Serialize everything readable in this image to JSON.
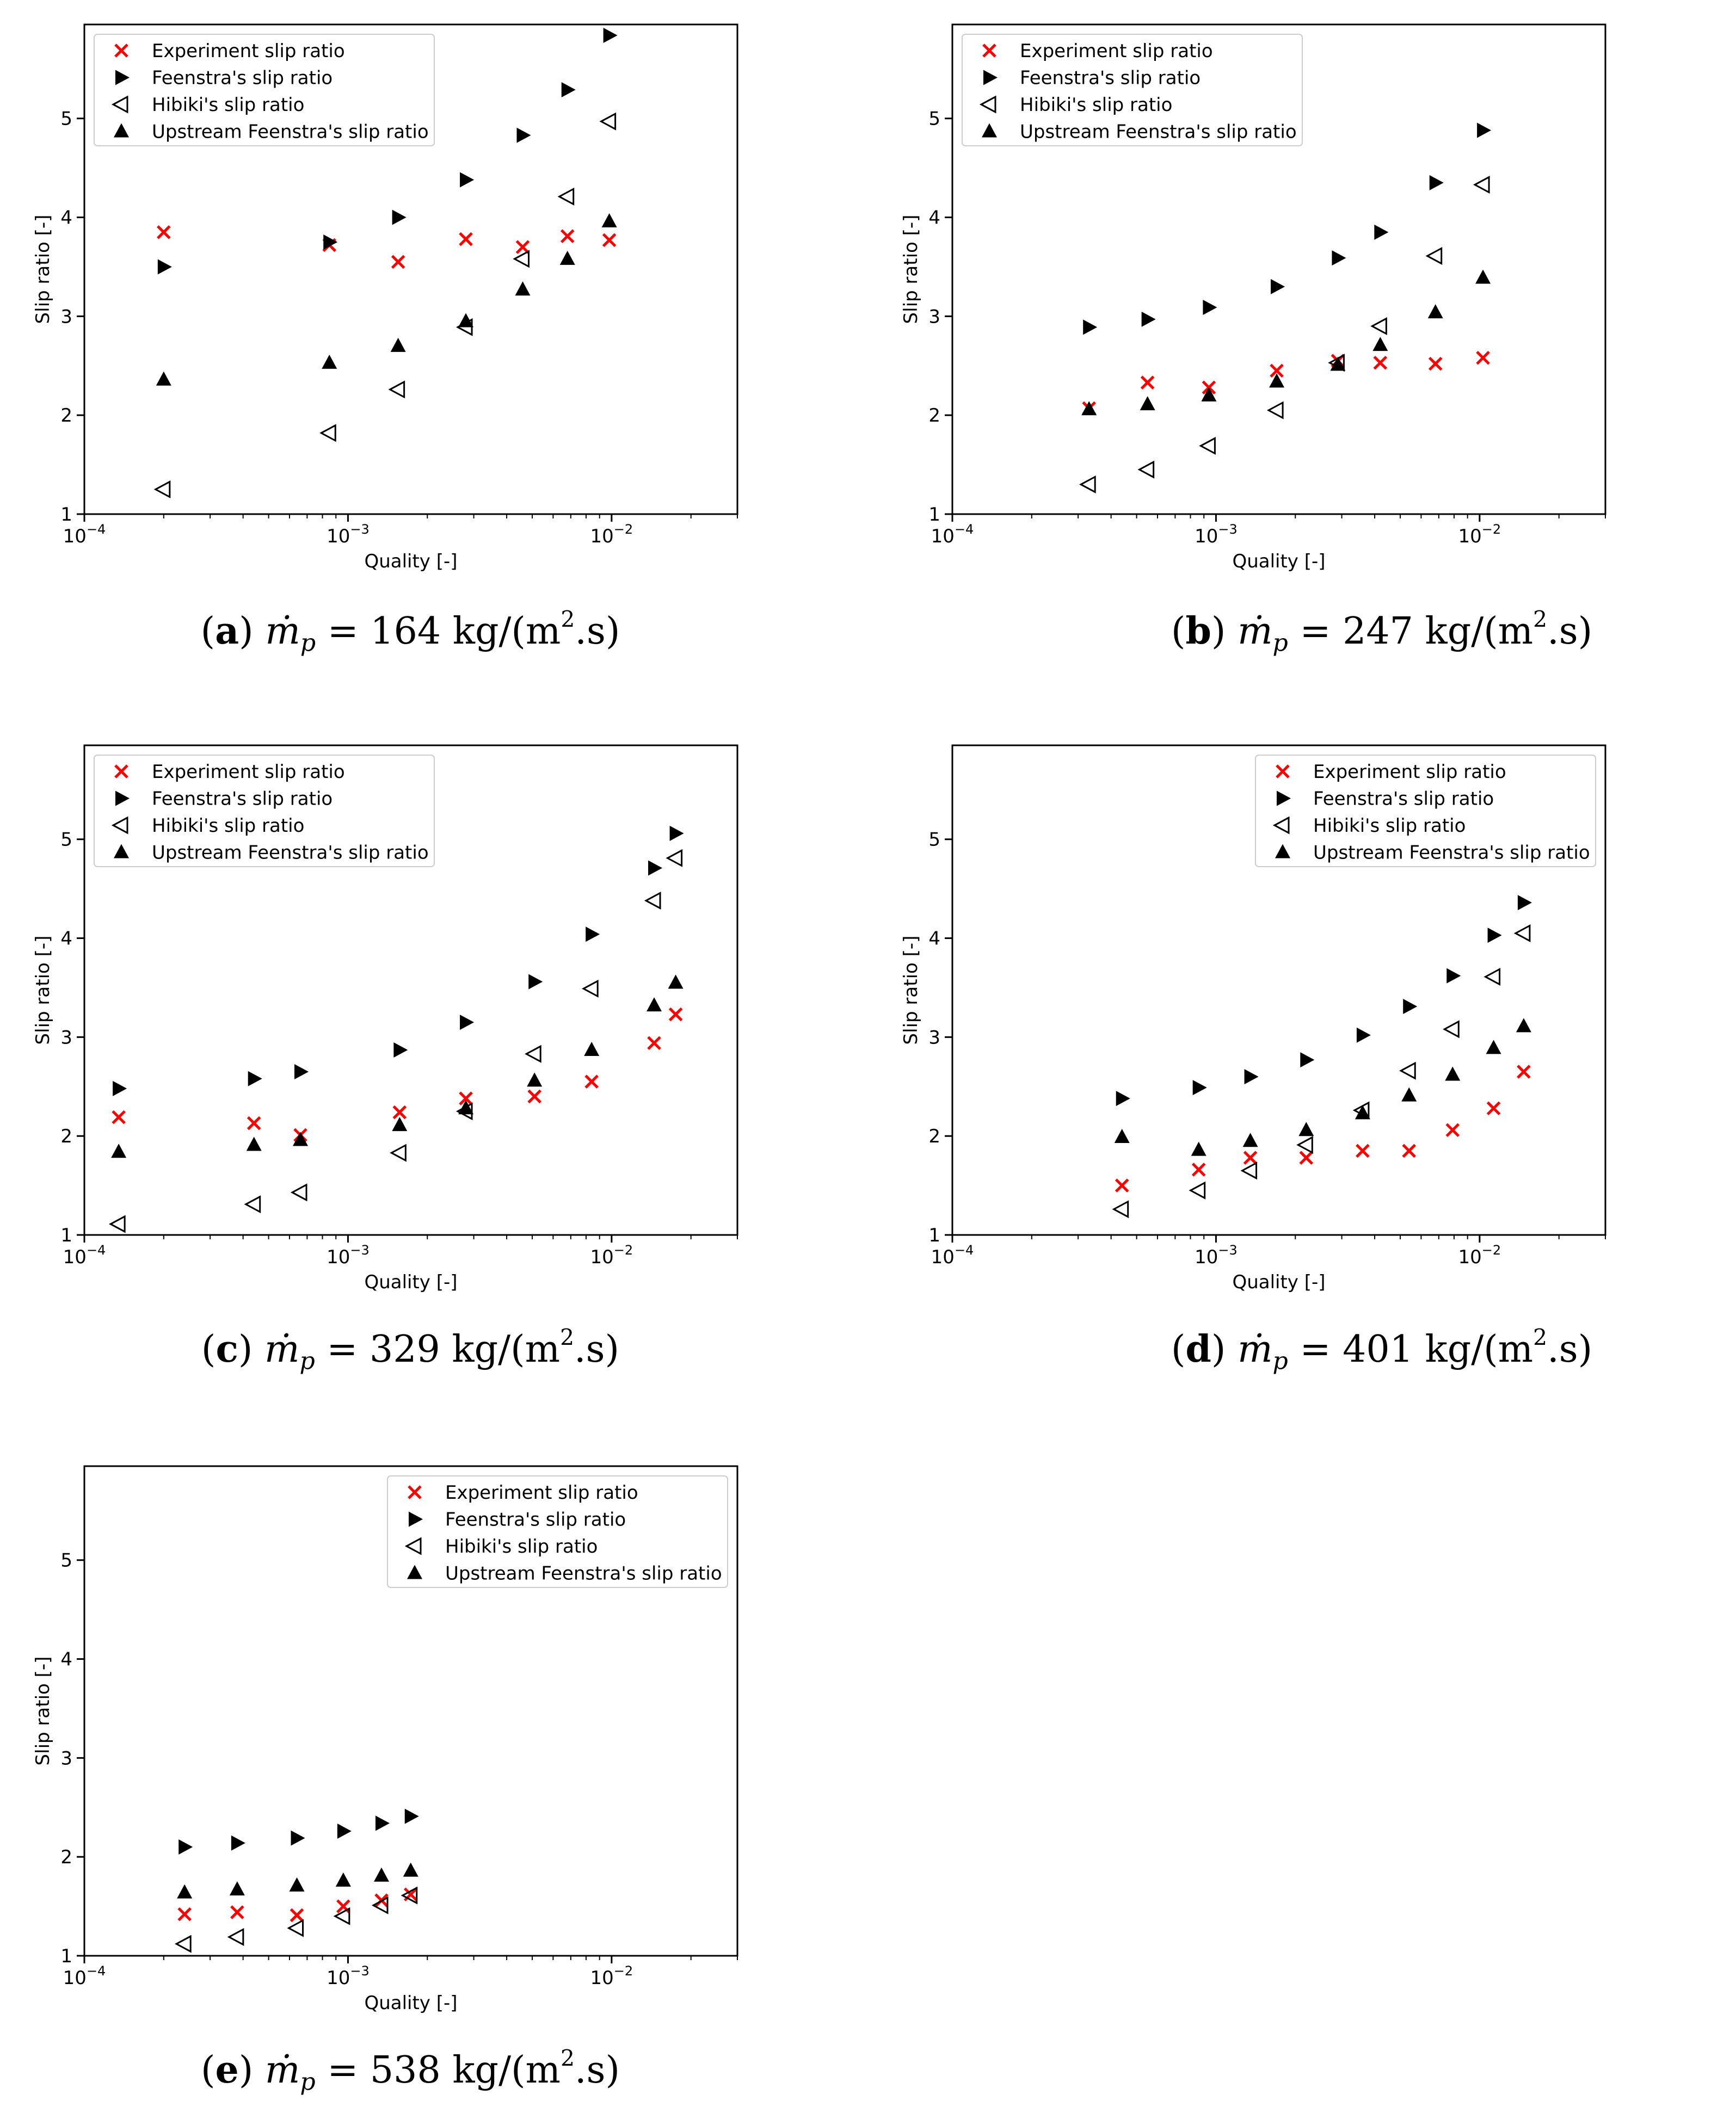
{
  "figure": {
    "mass_flux_unit": "kg/(m2.s)",
    "caption_prefix_symbol": "ṁ",
    "caption_subscript": "p"
  },
  "chart_data": [
    {
      "type": "scatter",
      "panel": "a",
      "caption_value": "164",
      "xscale": "log",
      "xlim": [
        0.0001,
        0.03
      ],
      "ylim": [
        1,
        5.95
      ],
      "xlabel": "Quality [-]",
      "ylabel": "Slip ratio [-]",
      "xticks": [
        {
          "v": 0.0001,
          "base": "10",
          "exp": "−4"
        },
        {
          "v": 0.001,
          "base": "10",
          "exp": "−3"
        },
        {
          "v": 0.01,
          "base": "10",
          "exp": "−2"
        }
      ],
      "yticks": [
        "1",
        "2",
        "3",
        "4",
        "5"
      ],
      "legend_position": "upper-left",
      "legend": [
        "Experiment slip ratio",
        "Feenstra's slip ratio",
        "Hibiki's slip ratio",
        "Upstream Feenstra's slip ratio"
      ],
      "series": [
        {
          "name": "Experiment slip ratio",
          "marker": "x",
          "color": "#ff0000",
          "x": [
            0.0002,
            0.00085,
            0.00155,
            0.0028,
            0.0046,
            0.0068,
            0.0098
          ],
          "y": [
            3.85,
            3.72,
            3.55,
            3.78,
            3.7,
            3.81,
            3.77
          ]
        },
        {
          "name": "Feenstra's slip ratio",
          "marker": "tri-right",
          "color": "#000000",
          "x": [
            0.0002,
            0.00085,
            0.00155,
            0.0028,
            0.0046,
            0.0068,
            0.0098
          ],
          "y": [
            3.5,
            3.75,
            4.0,
            4.38,
            4.83,
            5.29,
            5.84
          ]
        },
        {
          "name": "Hibiki's slip ratio",
          "marker": "tri-left-open",
          "color": "#000000",
          "x": [
            0.0002,
            0.00085,
            0.00155,
            0.0028,
            0.0046,
            0.0068,
            0.0098
          ],
          "y": [
            1.25,
            1.82,
            2.26,
            2.89,
            3.58,
            4.21,
            4.97
          ]
        },
        {
          "name": "Upstream Feenstra's slip ratio",
          "marker": "tri-up",
          "color": "#000000",
          "x": [
            0.0002,
            0.00085,
            0.00155,
            0.0028,
            0.0046,
            0.0068,
            0.0098
          ],
          "y": [
            2.36,
            2.53,
            2.7,
            2.95,
            3.27,
            3.58,
            3.96
          ]
        }
      ]
    },
    {
      "type": "scatter",
      "panel": "b",
      "caption_value": "247",
      "xscale": "log",
      "xlim": [
        0.0001,
        0.03
      ],
      "ylim": [
        1,
        5.95
      ],
      "xlabel": "Quality [-]",
      "ylabel": "Slip ratio [-]",
      "xticks": [
        {
          "v": 0.0001,
          "base": "10",
          "exp": "−4"
        },
        {
          "v": 0.001,
          "base": "10",
          "exp": "−3"
        },
        {
          "v": 0.01,
          "base": "10",
          "exp": "−2"
        }
      ],
      "yticks": [
        "1",
        "2",
        "3",
        "4",
        "5"
      ],
      "legend_position": "upper-left",
      "legend": [
        "Experiment slip ratio",
        "Feenstra's slip ratio",
        "Hibiki's slip ratio",
        "Upstream Feenstra's slip ratio"
      ],
      "series": [
        {
          "name": "Experiment slip ratio",
          "marker": "x",
          "color": "#ff0000",
          "x": [
            0.00033,
            0.00055,
            0.00094,
            0.0017,
            0.0029,
            0.0042,
            0.0068,
            0.0103
          ],
          "y": [
            2.07,
            2.33,
            2.28,
            2.45,
            2.55,
            2.53,
            2.52,
            2.58
          ]
        },
        {
          "name": "Feenstra's slip ratio",
          "marker": "tri-right",
          "color": "#000000",
          "x": [
            0.00033,
            0.00055,
            0.00094,
            0.0017,
            0.0029,
            0.0042,
            0.0068,
            0.0103
          ],
          "y": [
            2.89,
            2.97,
            3.09,
            3.3,
            3.59,
            3.85,
            4.35,
            4.88
          ]
        },
        {
          "name": "Hibiki's slip ratio",
          "marker": "tri-left-open",
          "color": "#000000",
          "x": [
            0.00033,
            0.00055,
            0.00094,
            0.0017,
            0.0029,
            0.0042,
            0.0068,
            0.0103
          ],
          "y": [
            1.3,
            1.45,
            1.69,
            2.05,
            2.53,
            2.9,
            3.61,
            4.33
          ]
        },
        {
          "name": "Upstream Feenstra's slip ratio",
          "marker": "tri-up",
          "color": "#000000",
          "x": [
            0.00033,
            0.00055,
            0.00094,
            0.0017,
            0.0029,
            0.0042,
            0.0068,
            0.0103
          ],
          "y": [
            2.06,
            2.11,
            2.2,
            2.34,
            2.51,
            2.71,
            3.04,
            3.39
          ]
        }
      ]
    },
    {
      "type": "scatter",
      "panel": "c",
      "caption_value": "329",
      "xscale": "log",
      "xlim": [
        0.0001,
        0.03
      ],
      "ylim": [
        1,
        5.95
      ],
      "xlabel": "Quality [-]",
      "ylabel": "Slip ratio [-]",
      "xticks": [
        {
          "v": 0.0001,
          "base": "10",
          "exp": "−4"
        },
        {
          "v": 0.001,
          "base": "10",
          "exp": "−3"
        },
        {
          "v": 0.01,
          "base": "10",
          "exp": "−2"
        }
      ],
      "yticks": [
        "1",
        "2",
        "3",
        "4",
        "5"
      ],
      "legend_position": "upper-left",
      "legend": [
        "Experiment slip ratio",
        "Feenstra's slip ratio",
        "Hibiki's slip ratio",
        "Upstream Feenstra's slip ratio"
      ],
      "series": [
        {
          "name": "Experiment slip ratio",
          "marker": "x",
          "color": "#ff0000",
          "x": [
            0.000135,
            0.00044,
            0.00066,
            0.00157,
            0.0028,
            0.0051,
            0.0084,
            0.0145,
            0.0175
          ],
          "y": [
            2.19,
            2.13,
            2.01,
            2.24,
            2.38,
            2.4,
            2.55,
            2.94,
            3.23
          ]
        },
        {
          "name": "Feenstra's slip ratio",
          "marker": "tri-right",
          "color": "#000000",
          "x": [
            0.000135,
            0.00044,
            0.00066,
            0.00157,
            0.0028,
            0.0051,
            0.0084,
            0.0145,
            0.0175
          ],
          "y": [
            2.48,
            2.58,
            2.65,
            2.87,
            3.15,
            3.56,
            4.04,
            4.71,
            5.06
          ]
        },
        {
          "name": "Hibiki's slip ratio",
          "marker": "tri-left-open",
          "color": "#000000",
          "x": [
            0.000135,
            0.00044,
            0.00066,
            0.00157,
            0.0028,
            0.0051,
            0.0084,
            0.0145,
            0.0175
          ],
          "y": [
            1.11,
            1.31,
            1.43,
            1.83,
            2.25,
            2.83,
            3.49,
            4.38,
            4.81
          ]
        },
        {
          "name": "Upstream Feenstra's slip ratio",
          "marker": "tri-up",
          "color": "#000000",
          "x": [
            0.000135,
            0.00044,
            0.00066,
            0.00157,
            0.0028,
            0.0051,
            0.0084,
            0.0145,
            0.0175
          ],
          "y": [
            1.84,
            1.91,
            1.96,
            2.11,
            2.28,
            2.56,
            2.87,
            3.32,
            3.55
          ]
        }
      ]
    },
    {
      "type": "scatter",
      "panel": "d",
      "caption_value": "401",
      "xscale": "log",
      "xlim": [
        0.0001,
        0.03
      ],
      "ylim": [
        1,
        5.95
      ],
      "xlabel": "Quality [-]",
      "ylabel": "Slip ratio [-]",
      "xticks": [
        {
          "v": 0.0001,
          "base": "10",
          "exp": "−4"
        },
        {
          "v": 0.001,
          "base": "10",
          "exp": "−3"
        },
        {
          "v": 0.01,
          "base": "10",
          "exp": "−2"
        }
      ],
      "yticks": [
        "1",
        "2",
        "3",
        "4",
        "5"
      ],
      "legend_position": "upper-right",
      "legend": [
        "Experiment slip ratio",
        "Feenstra's slip ratio",
        "Hibiki's slip ratio",
        "Upstream Feenstra's slip ratio"
      ],
      "series": [
        {
          "name": "Experiment slip ratio",
          "marker": "x",
          "color": "#ff0000",
          "x": [
            0.00044,
            0.00086,
            0.00135,
            0.0022,
            0.0036,
            0.0054,
            0.0079,
            0.0113,
            0.0147
          ],
          "y": [
            1.5,
            1.66,
            1.78,
            1.78,
            1.85,
            1.85,
            2.06,
            2.28,
            2.65
          ]
        },
        {
          "name": "Feenstra's slip ratio",
          "marker": "tri-right",
          "color": "#000000",
          "x": [
            0.00044,
            0.00086,
            0.00135,
            0.0022,
            0.0036,
            0.0054,
            0.0079,
            0.0113,
            0.0147
          ],
          "y": [
            2.38,
            2.49,
            2.6,
            2.77,
            3.02,
            3.31,
            3.62,
            4.03,
            4.36
          ]
        },
        {
          "name": "Hibiki's slip ratio",
          "marker": "tri-left-open",
          "color": "#000000",
          "x": [
            0.00044,
            0.00086,
            0.00135,
            0.0022,
            0.0036,
            0.0054,
            0.0079,
            0.0113,
            0.0147
          ],
          "y": [
            1.26,
            1.45,
            1.65,
            1.91,
            2.26,
            2.66,
            3.08,
            3.61,
            4.05
          ]
        },
        {
          "name": "Upstream Feenstra's slip ratio",
          "marker": "tri-up",
          "color": "#000000",
          "x": [
            0.00044,
            0.00086,
            0.00135,
            0.0022,
            0.0036,
            0.0054,
            0.0079,
            0.0113,
            0.0147
          ],
          "y": [
            1.99,
            1.86,
            1.95,
            2.06,
            2.23,
            2.41,
            2.62,
            2.89,
            3.11
          ]
        }
      ]
    },
    {
      "type": "scatter",
      "panel": "e",
      "caption_value": "538",
      "xscale": "log",
      "xlim": [
        0.0001,
        0.03
      ],
      "ylim": [
        1,
        5.95
      ],
      "xlabel": "Quality [-]",
      "ylabel": "Slip ratio [-]",
      "xticks": [
        {
          "v": 0.0001,
          "base": "10",
          "exp": "−4"
        },
        {
          "v": 0.001,
          "base": "10",
          "exp": "−3"
        },
        {
          "v": 0.01,
          "base": "10",
          "exp": "−2"
        }
      ],
      "yticks": [
        "1",
        "2",
        "3",
        "4",
        "5"
      ],
      "legend_position": "upper-right",
      "legend": [
        "Experiment slip ratio",
        "Feenstra's slip ratio",
        "Hibiki's slip ratio",
        "Upstream Feenstra's slip ratio"
      ],
      "series": [
        {
          "name": "Experiment slip ratio",
          "marker": "x",
          "color": "#ff0000",
          "x": [
            0.00024,
            0.00038,
            0.00064,
            0.00096,
            0.00134,
            0.00173
          ],
          "y": [
            1.42,
            1.44,
            1.41,
            1.5,
            1.56,
            1.62
          ]
        },
        {
          "name": "Feenstra's slip ratio",
          "marker": "tri-right",
          "color": "#000000",
          "x": [
            0.00024,
            0.00038,
            0.00064,
            0.00096,
            0.00134,
            0.00173
          ],
          "y": [
            2.1,
            2.14,
            2.19,
            2.26,
            2.34,
            2.41
          ]
        },
        {
          "name": "Hibiki's slip ratio",
          "marker": "tri-left-open",
          "color": "#000000",
          "x": [
            0.00024,
            0.00038,
            0.00064,
            0.00096,
            0.00134,
            0.00173
          ],
          "y": [
            1.12,
            1.19,
            1.28,
            1.4,
            1.51,
            1.61
          ]
        },
        {
          "name": "Upstream Feenstra's slip ratio",
          "marker": "tri-up",
          "color": "#000000",
          "x": [
            0.00024,
            0.00038,
            0.00064,
            0.00096,
            0.00134,
            0.00173
          ],
          "y": [
            1.64,
            1.67,
            1.71,
            1.76,
            1.81,
            1.86
          ]
        }
      ]
    }
  ]
}
